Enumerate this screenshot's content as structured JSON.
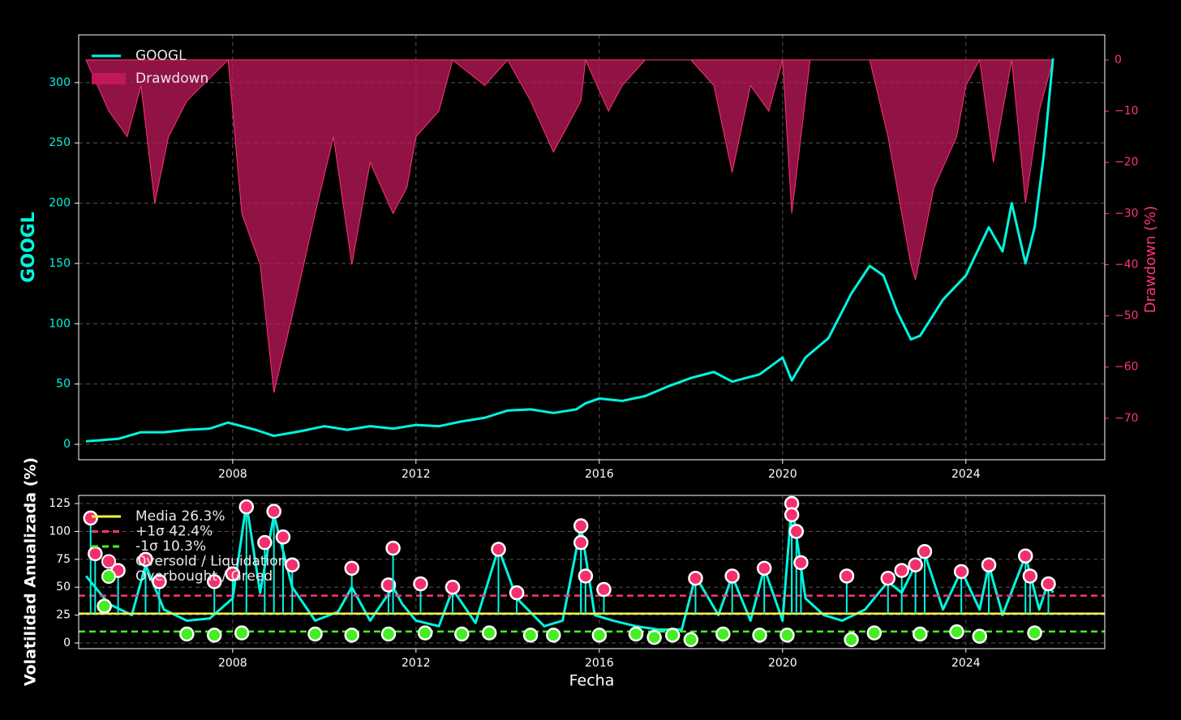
{
  "chart_data": [
    {
      "type": "line",
      "ylabel": "GOOGL",
      "y2label": "Drawdown (%)",
      "xlim": [
        2004.64,
        2027.03
      ],
      "xticks": [
        2008,
        2012,
        2016,
        2020,
        2024
      ],
      "ylim": [
        -12.8,
        339.6
      ],
      "yticks": [
        0,
        50,
        100,
        150,
        200,
        250,
        300
      ],
      "y2lim": [
        -78.1,
        4.9
      ],
      "y2ticks": [
        {
          "value": 0,
          "label": "0"
        },
        {
          "value": -10,
          "label": "−10"
        },
        {
          "value": -20,
          "label": "−20"
        },
        {
          "value": -30,
          "label": "−30"
        },
        {
          "value": -40,
          "label": "−40"
        },
        {
          "value": -50,
          "label": "−50"
        },
        {
          "value": -60,
          "label": "−60"
        },
        {
          "value": -70,
          "label": "−70"
        }
      ],
      "grid": true,
      "legend": "upper left",
      "series": [
        {
          "name": "Drawdown",
          "type": "area",
          "axis": "y2",
          "color": "#c2185b",
          "x": [
            2004.8,
            2005.3,
            2005.7,
            2006.0,
            2006.3,
            2006.6,
            2007.0,
            2007.9,
            2008.2,
            2008.6,
            2008.9,
            2009.3,
            2009.8,
            2010.2,
            2010.6,
            2011.0,
            2011.5,
            2011.8,
            2012.0,
            2012.5,
            2012.8,
            2013.5,
            2014.0,
            2014.5,
            2015.0,
            2015.6,
            2015.7,
            2016.2,
            2016.5,
            2017.0,
            2018.0,
            2018.5,
            2018.9,
            2019.3,
            2019.7,
            2020.0,
            2020.2,
            2020.6,
            2021.0,
            2021.9,
            2022.3,
            2022.8,
            2022.9,
            2023.3,
            2023.8,
            2024.0,
            2024.3,
            2024.6,
            2025.0,
            2025.3,
            2025.6,
            2025.9
          ],
          "values": [
            0,
            -10,
            -15,
            -5,
            -28,
            -15,
            -8,
            0,
            -30,
            -40,
            -65,
            -50,
            -30,
            -15,
            -40,
            -20,
            -30,
            -25,
            -15,
            -10,
            0,
            -5,
            0,
            -8,
            -18,
            -8,
            0,
            -10,
            -5,
            0,
            0,
            -5,
            -22,
            -5,
            -10,
            0,
            -30,
            0,
            0,
            0,
            -15,
            -40,
            -43,
            -25,
            -15,
            -5,
            0,
            -20,
            0,
            -28,
            -10,
            0
          ]
        },
        {
          "name": "GOOGL",
          "type": "line",
          "color": "#00f5e0",
          "x": [
            2004.8,
            2005.5,
            2006.0,
            2006.5,
            2007.0,
            2007.5,
            2007.9,
            2008.5,
            2008.9,
            2009.5,
            2010.0,
            2010.5,
            2011.0,
            2011.5,
            2012.0,
            2012.5,
            2013.0,
            2013.5,
            2014.0,
            2014.5,
            2015.0,
            2015.5,
            2015.7,
            2016.0,
            2016.5,
            2017.0,
            2017.5,
            2018.0,
            2018.5,
            2018.9,
            2019.5,
            2020.0,
            2020.2,
            2020.5,
            2021.0,
            2021.5,
            2021.9,
            2022.2,
            2022.5,
            2022.8,
            2023.0,
            2023.5,
            2024.0,
            2024.5,
            2024.8,
            2025.0,
            2025.3,
            2025.5,
            2025.7,
            2025.85,
            2025.9
          ],
          "values": [
            2.5,
            4.5,
            10,
            10,
            12,
            13,
            18,
            12,
            7,
            11,
            15,
            12,
            15,
            13,
            16,
            15,
            19,
            22,
            28,
            29,
            26,
            29,
            34,
            38,
            36,
            40,
            48,
            55,
            60,
            52,
            58,
            72,
            53,
            72,
            88,
            125,
            148,
            140,
            110,
            87,
            90,
            120,
            140,
            180,
            160,
            200,
            150,
            180,
            240,
            300,
            320
          ]
        }
      ]
    },
    {
      "type": "line",
      "ylabel": "Volatilidad Anualizada (%)",
      "xlabel": "Fecha",
      "xlim": [
        2004.64,
        2027.03
      ],
      "xticks": [
        2008,
        2012,
        2016,
        2020,
        2024
      ],
      "ylim": [
        -5.1,
        132.3
      ],
      "yticks": [
        0,
        25,
        50,
        75,
        100,
        125
      ],
      "grid": true,
      "legend": "upper left",
      "hlines": [
        {
          "name": "Media 26.3%",
          "value": 26.3,
          "color": "#f5f542",
          "style": "solid"
        },
        {
          "name": "+1σ 42.4%",
          "value": 42.4,
          "color": "#ff3377",
          "style": "dashed"
        },
        {
          "name": "-1σ 10.3%",
          "value": 10.3,
          "color": "#44ff22",
          "style": "dashed"
        }
      ],
      "series": [
        {
          "type": "line",
          "color": "#00f5e0",
          "x": [
            2004.8,
            2005.3,
            2005.8,
            2006.1,
            2006.5,
            2007.0,
            2007.5,
            2008.0,
            2008.3,
            2008.6,
            2008.9,
            2009.3,
            2009.8,
            2010.3,
            2010.6,
            2011.0,
            2011.5,
            2011.7,
            2012.0,
            2012.5,
            2012.8,
            2013.3,
            2013.8,
            2014.2,
            2014.8,
            2015.2,
            2015.6,
            2015.9,
            2016.3,
            2016.8,
            2017.3,
            2017.8,
            2018.1,
            2018.6,
            2018.9,
            2019.3,
            2019.6,
            2020.0,
            2020.2,
            2020.5,
            2020.9,
            2021.3,
            2021.8,
            2022.3,
            2022.6,
            2022.9,
            2023.1,
            2023.5,
            2023.9,
            2024.3,
            2024.5,
            2024.8,
            2025.3,
            2025.6,
            2025.8,
            2025.9
          ],
          "values": [
            60,
            35,
            25,
            70,
            30,
            20,
            22,
            40,
            125,
            45,
            115,
            50,
            20,
            28,
            50,
            20,
            50,
            35,
            20,
            15,
            48,
            18,
            85,
            40,
            15,
            20,
            105,
            25,
            20,
            15,
            12,
            12,
            60,
            25,
            60,
            20,
            67,
            20,
            125,
            40,
            25,
            20,
            30,
            55,
            45,
            70,
            80,
            30,
            65,
            30,
            70,
            25,
            78,
            30,
            55,
            45
          ]
        },
        {
          "name": "Oversold / Liquidation",
          "type": "scatter",
          "color": "#f2306e",
          "x": [
            2004.9,
            2005.0,
            2005.5,
            2006.1,
            2006.4,
            2007.6,
            2008.0,
            2008.3,
            2008.7,
            2008.9,
            2009.1,
            2009.3,
            2010.6,
            2011.4,
            2011.5,
            2012.1,
            2012.8,
            2013.8,
            2014.2,
            2015.6,
            2015.6,
            2015.7,
            2016.1,
            2018.1,
            2018.9,
            2019.6,
            2020.2,
            2020.2,
            2020.3,
            2020.4,
            2021.4,
            2022.3,
            2022.6,
            2022.9,
            2023.1,
            2023.9,
            2024.5,
            2025.3,
            2025.4,
            2025.8
          ],
          "values": [
            112,
            80,
            65,
            75,
            55,
            55,
            62,
            122,
            90,
            118,
            95,
            70,
            67,
            52,
            85,
            53,
            50,
            84,
            45,
            105,
            90,
            60,
            48,
            58,
            60,
            67,
            125,
            115,
            100,
            72,
            60,
            58,
            65,
            70,
            82,
            64,
            70,
            78,
            60,
            53
          ]
        },
        {
          "name": "Overbought / Greed",
          "type": "scatter",
          "color": "#44ee22",
          "x": [
            2005.2,
            2007.0,
            2007.6,
            2008.2,
            2009.8,
            2010.6,
            2011.4,
            2012.2,
            2013.0,
            2013.6,
            2014.5,
            2015.0,
            2016.0,
            2016.8,
            2017.2,
            2017.6,
            2018.0,
            2018.7,
            2019.5,
            2020.1,
            2021.5,
            2022.0,
            2023.0,
            2023.8,
            2024.3,
            2025.5
          ],
          "values": [
            33,
            8,
            7,
            9,
            8,
            7,
            8,
            9,
            8,
            9,
            7,
            7,
            7,
            8,
            5,
            7,
            3,
            8,
            7,
            7,
            3,
            9,
            8,
            10,
            6,
            9
          ]
        }
      ]
    }
  ]
}
